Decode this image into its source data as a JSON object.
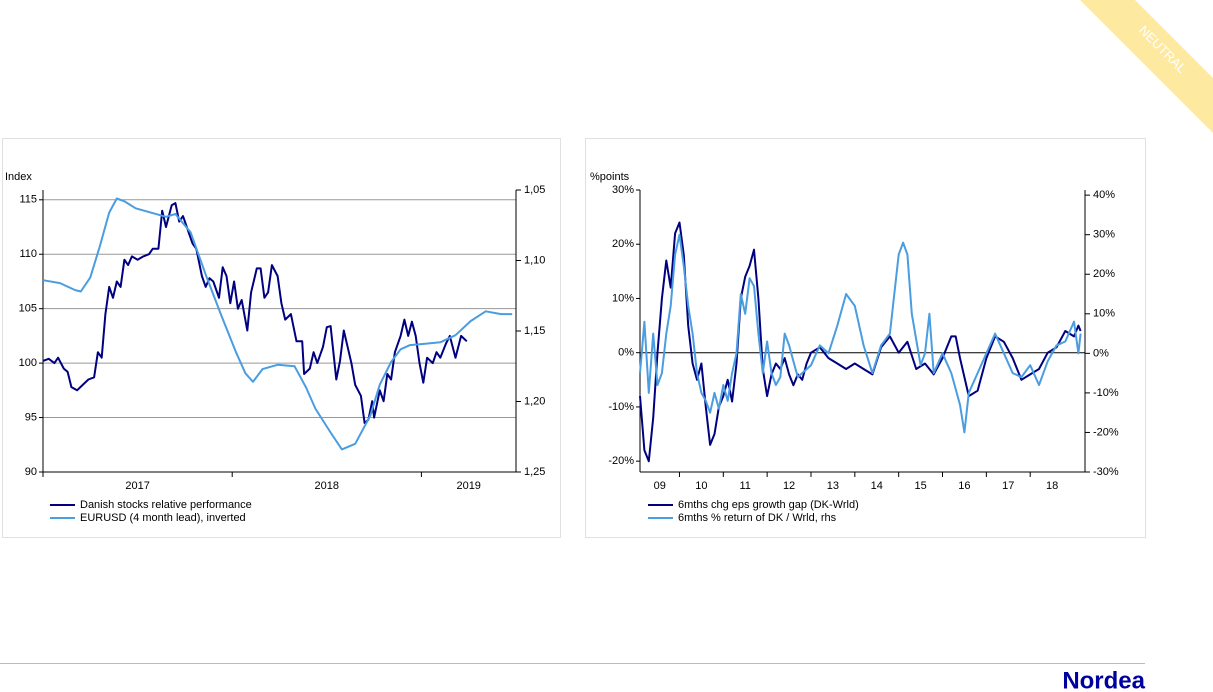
{
  "chart_data": [
    {
      "type": "line",
      "y_label": "Index",
      "xlim": [
        2017,
        2019.5
      ],
      "xticks": [
        2017,
        2018,
        2019
      ],
      "ylim": [
        90,
        115.9
      ],
      "yticks": [
        90,
        95,
        100,
        105,
        110,
        115
      ],
      "y2lim": [
        1.25,
        1.05
      ],
      "y2ticks": [
        {
          "value": 1.05,
          "label": "1,05"
        },
        {
          "value": 1.1,
          "label": "1,10"
        },
        {
          "value": 1.15,
          "label": "1,15"
        },
        {
          "value": 1.2,
          "label": "1,20"
        },
        {
          "value": 1.25,
          "label": "1,25"
        }
      ],
      "grid": true,
      "zero_line": false,
      "series": [
        {
          "name": "Danish stocks relative performance",
          "color": "#000080",
          "axis": "y",
          "x": [
            2017.0,
            2017.03,
            2017.06,
            2017.08,
            2017.11,
            2017.13,
            2017.15,
            2017.18,
            2017.21,
            2017.24,
            2017.27,
            2017.29,
            2017.31,
            2017.33,
            2017.35,
            2017.37,
            2017.39,
            2017.41,
            2017.43,
            2017.45,
            2017.47,
            2017.5,
            2017.53,
            2017.56,
            2017.58,
            2017.61,
            2017.63,
            2017.65,
            2017.68,
            2017.7,
            2017.72,
            2017.74,
            2017.77,
            2017.79,
            2017.81,
            2017.84,
            2017.86,
            2017.88,
            2017.9,
            2017.93,
            2017.95,
            2017.97,
            2017.99,
            2018.01,
            2018.03,
            2018.05,
            2018.08,
            2018.1,
            2018.13,
            2018.15,
            2018.17,
            2018.19,
            2018.21,
            2018.24,
            2018.26,
            2018.28,
            2018.31,
            2018.34,
            2018.37,
            2018.38,
            2018.41,
            2018.43,
            2018.45,
            2018.48,
            2018.5,
            2018.52,
            2018.55,
            2018.57,
            2018.59,
            2018.61,
            2018.63,
            2018.65,
            2018.68,
            2018.7,
            2018.72,
            2018.74,
            2018.75,
            2018.78,
            2018.8,
            2018.82,
            2018.84,
            2018.86,
            2018.89,
            2018.91,
            2018.93,
            2018.95,
            2018.97,
            2018.99,
            2019.01,
            2019.03,
            2019.06,
            2019.08,
            2019.1,
            2019.13,
            2019.15,
            2019.18,
            2019.21,
            2019.24
          ],
          "values": [
            100.2,
            100.4,
            100.0,
            100.5,
            99.5,
            99.2,
            97.8,
            97.5,
            98.0,
            98.5,
            98.7,
            101.0,
            100.5,
            104.5,
            107.0,
            106.0,
            107.5,
            107.0,
            109.5,
            109.0,
            109.8,
            109.5,
            109.8,
            110.0,
            110.5,
            110.5,
            114.0,
            112.5,
            114.5,
            114.7,
            113.0,
            113.5,
            112.0,
            111.0,
            110.5,
            108.0,
            107.0,
            107.8,
            107.5,
            106.0,
            108.8,
            108.0,
            105.5,
            107.5,
            105.0,
            105.8,
            103.0,
            106.5,
            108.7,
            108.7,
            106.0,
            106.5,
            109.0,
            108.0,
            105.5,
            104.0,
            104.5,
            102.0,
            102.0,
            99.0,
            99.5,
            101.0,
            100.0,
            101.5,
            103.3,
            103.4,
            98.5,
            100.2,
            103.0,
            101.5,
            100.0,
            98.0,
            97.0,
            94.5,
            94.8,
            96.5,
            95.0,
            97.5,
            96.5,
            99.0,
            98.5,
            101.0,
            102.5,
            104.0,
            102.5,
            103.8,
            102.5,
            100.0,
            98.2,
            100.5,
            100.0,
            101.0,
            100.5,
            101.8,
            102.5,
            100.5,
            102.5,
            102.0
          ]
        },
        {
          "name": "EURUSD (4 month lead), inverted",
          "color": "#4a9de0",
          "axis": "y2",
          "x": [
            2017.0,
            2017.09,
            2017.17,
            2017.2,
            2017.25,
            2017.3,
            2017.35,
            2017.39,
            2017.43,
            2017.49,
            2017.57,
            2017.65,
            2017.7,
            2017.78,
            2017.86,
            2017.94,
            2018.02,
            2018.07,
            2018.11,
            2018.16,
            2018.24,
            2018.33,
            2018.39,
            2018.44,
            2018.52,
            2018.58,
            2018.65,
            2018.73,
            2018.78,
            2018.84,
            2018.89,
            2018.94,
            2019.02,
            2019.1,
            2019.18,
            2019.26,
            2019.34,
            2019.42,
            2019.48
          ],
          "values": [
            1.114,
            1.116,
            1.121,
            1.122,
            1.112,
            1.09,
            1.066,
            1.056,
            1.058,
            1.063,
            1.066,
            1.069,
            1.067,
            1.08,
            1.11,
            1.138,
            1.165,
            1.18,
            1.186,
            1.177,
            1.174,
            1.175,
            1.19,
            1.205,
            1.222,
            1.234,
            1.23,
            1.21,
            1.188,
            1.172,
            1.163,
            1.16,
            1.159,
            1.158,
            1.153,
            1.143,
            1.136,
            1.138,
            1.138
          ]
        }
      ]
    },
    {
      "type": "line",
      "y_label": "%points",
      "xlim": [
        2009.1,
        2019.25
      ],
      "xticks": [
        {
          "value": 2009,
          "label": "09"
        },
        {
          "value": 2010,
          "label": "10"
        },
        {
          "value": 2011,
          "label": "11"
        },
        {
          "value": 2012,
          "label": "12"
        },
        {
          "value": 2013,
          "label": "13"
        },
        {
          "value": 2014,
          "label": "14"
        },
        {
          "value": 2015,
          "label": "15"
        },
        {
          "value": 2016,
          "label": "16"
        },
        {
          "value": 2017,
          "label": "17"
        },
        {
          "value": 2018,
          "label": "18"
        }
      ],
      "ylim": [
        -22,
        30
      ],
      "yticks": [
        {
          "value": -20,
          "label": "-20%"
        },
        {
          "value": -10,
          "label": "-10%"
        },
        {
          "value": 0,
          "label": "0%"
        },
        {
          "value": 10,
          "label": "10%"
        },
        {
          "value": 20,
          "label": "20%"
        },
        {
          "value": 30,
          "label": "30%"
        }
      ],
      "y2lim": [
        -30,
        41.3
      ],
      "y2ticks": [
        {
          "value": -30,
          "label": "-30%"
        },
        {
          "value": -20,
          "label": "-20%"
        },
        {
          "value": -10,
          "label": "-10%"
        },
        {
          "value": 0,
          "label": "0%"
        },
        {
          "value": 10,
          "label": "10%"
        },
        {
          "value": 20,
          "label": "20%"
        },
        {
          "value": 30,
          "label": "30%"
        },
        {
          "value": 40,
          "label": "40%"
        }
      ],
      "grid": false,
      "zero_line": true,
      "series": [
        {
          "name": "6mths chg eps growth gap (DK-Wrld)",
          "color": "#000080",
          "axis": "y",
          "x": [
            2009.1,
            2009.2,
            2009.3,
            2009.4,
            2009.5,
            2009.6,
            2009.7,
            2009.8,
            2009.9,
            2010.0,
            2010.1,
            2010.2,
            2010.3,
            2010.4,
            2010.5,
            2010.6,
            2010.7,
            2010.8,
            2010.9,
            2011.0,
            2011.1,
            2011.2,
            2011.3,
            2011.4,
            2011.5,
            2011.6,
            2011.7,
            2011.8,
            2011.9,
            2012.0,
            2012.1,
            2012.2,
            2012.3,
            2012.4,
            2012.5,
            2012.6,
            2012.7,
            2012.8,
            2012.9,
            2013.0,
            2013.2,
            2013.4,
            2013.6,
            2013.8,
            2014.0,
            2014.2,
            2014.4,
            2014.6,
            2014.8,
            2015.0,
            2015.2,
            2015.4,
            2015.6,
            2015.8,
            2016.0,
            2016.2,
            2016.3,
            2016.4,
            2016.6,
            2016.8,
            2017.0,
            2017.2,
            2017.4,
            2017.6,
            2017.8,
            2018.0,
            2018.2,
            2018.4,
            2018.6,
            2018.8,
            2019.0,
            2019.1,
            2019.15
          ],
          "values": [
            -8,
            -18,
            -20,
            -12,
            0,
            10,
            17,
            12,
            22,
            24,
            18,
            5,
            -2,
            -5,
            -2,
            -10,
            -17,
            -15,
            -10,
            -8,
            -5,
            -9,
            -2,
            10,
            14,
            16,
            19,
            10,
            -3,
            -8,
            -4,
            -2,
            -3,
            -1,
            -4,
            -6,
            -4,
            -5,
            -2,
            0,
            1,
            -1,
            -2,
            -3,
            -2,
            -3,
            -4,
            1,
            3,
            0,
            2,
            -3,
            -2,
            -4,
            -1,
            3,
            3,
            -1,
            -8,
            -7,
            -1,
            3,
            2,
            -1,
            -5,
            -4,
            -3,
            0,
            1,
            4,
            3,
            5,
            4
          ]
        },
        {
          "name": "6mths % return of DK / Wrld, rhs",
          "color": "#4a9de0",
          "axis": "y2",
          "x": [
            2009.1,
            2009.2,
            2009.3,
            2009.4,
            2009.5,
            2009.6,
            2009.7,
            2009.8,
            2009.9,
            2010.0,
            2010.1,
            2010.2,
            2010.3,
            2010.4,
            2010.5,
            2010.6,
            2010.7,
            2010.8,
            2010.9,
            2011.0,
            2011.1,
            2011.2,
            2011.3,
            2011.4,
            2011.5,
            2011.6,
            2011.7,
            2011.8,
            2011.9,
            2012.0,
            2012.1,
            2012.2,
            2012.3,
            2012.4,
            2012.5,
            2012.6,
            2012.7,
            2012.8,
            2013.0,
            2013.2,
            2013.4,
            2013.6,
            2013.8,
            2014.0,
            2014.2,
            2014.4,
            2014.6,
            2014.8,
            2015.0,
            2015.1,
            2015.2,
            2015.3,
            2015.5,
            2015.6,
            2015.7,
            2015.8,
            2016.0,
            2016.2,
            2016.4,
            2016.5,
            2016.6,
            2016.8,
            2017.0,
            2017.2,
            2017.4,
            2017.6,
            2017.8,
            2018.0,
            2018.2,
            2018.4,
            2018.6,
            2018.8,
            2019.0,
            2019.1,
            2019.15
          ],
          "values": [
            -5,
            8,
            -10,
            5,
            -8,
            -5,
            5,
            12,
            25,
            30,
            22,
            12,
            5,
            -5,
            -10,
            -12,
            -15,
            -10,
            -14,
            -8,
            -12,
            -5,
            0,
            15,
            10,
            19,
            17,
            5,
            -5,
            3,
            -5,
            -8,
            -6,
            5,
            2,
            -2,
            -6,
            -5,
            -3,
            2,
            0,
            7,
            15,
            12,
            2,
            -5,
            2,
            5,
            25,
            28,
            25,
            10,
            -3,
            0,
            10,
            -5,
            0,
            -5,
            -13,
            -20,
            -10,
            -5,
            0,
            5,
            0,
            -5,
            -6,
            -3,
            -8,
            -2,
            2,
            3,
            8,
            0,
            5
          ]
        }
      ]
    }
  ],
  "badge": "NEUTRAL",
  "logo": "Nordea"
}
